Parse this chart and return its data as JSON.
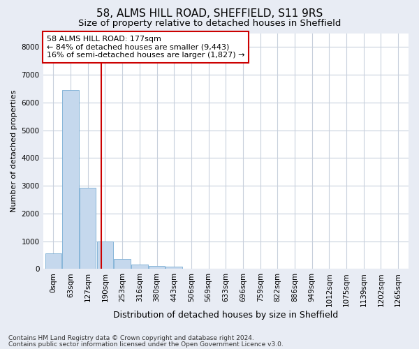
{
  "title1": "58, ALMS HILL ROAD, SHEFFIELD, S11 9RS",
  "title2": "Size of property relative to detached houses in Sheffield",
  "xlabel": "Distribution of detached houses by size in Sheffield",
  "ylabel": "Number of detached properties",
  "bar_labels": [
    "0sqm",
    "63sqm",
    "127sqm",
    "190sqm",
    "253sqm",
    "316sqm",
    "380sqm",
    "443sqm",
    "506sqm",
    "569sqm",
    "633sqm",
    "696sqm",
    "759sqm",
    "822sqm",
    "886sqm",
    "949sqm",
    "1012sqm",
    "1075sqm",
    "1139sqm",
    "1202sqm",
    "1265sqm"
  ],
  "bar_values": [
    560,
    6440,
    2920,
    990,
    360,
    165,
    100,
    75,
    0,
    0,
    0,
    0,
    0,
    0,
    0,
    0,
    0,
    0,
    0,
    0,
    0
  ],
  "bar_color": "#c5d8ed",
  "bar_edge_color": "#7aadd4",
  "vline_color": "#cc0000",
  "ylim": [
    0,
    8500
  ],
  "yticks": [
    0,
    1000,
    2000,
    3000,
    4000,
    5000,
    6000,
    7000,
    8000
  ],
  "annotation_title": "58 ALMS HILL ROAD: 177sqm",
  "annotation_line1": "← 84% of detached houses are smaller (9,443)",
  "annotation_line2": "16% of semi-detached houses are larger (1,827) →",
  "annotation_box_facecolor": "#ffffff",
  "annotation_box_edgecolor": "#cc0000",
  "fig_bg_color": "#e8ecf4",
  "plot_bg_color": "#ffffff",
  "grid_color": "#c8d0dc",
  "footer1": "Contains HM Land Registry data © Crown copyright and database right 2024.",
  "footer2": "Contains public sector information licensed under the Open Government Licence v3.0.",
  "title1_fontsize": 11,
  "title2_fontsize": 9.5,
  "xlabel_fontsize": 9,
  "ylabel_fontsize": 8,
  "tick_fontsize": 7.5,
  "annotation_fontsize": 8,
  "footer_fontsize": 6.5
}
